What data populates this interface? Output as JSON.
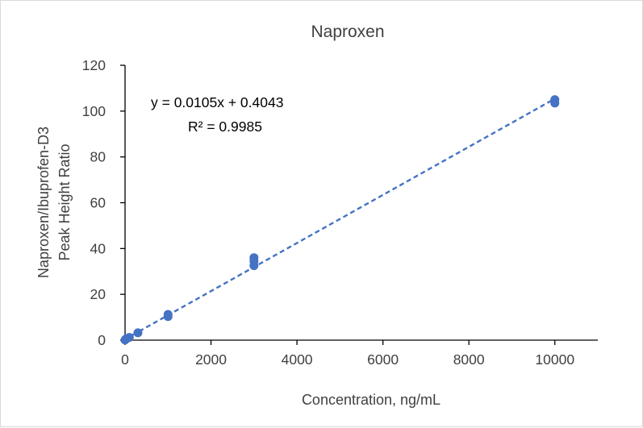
{
  "chart_data": {
    "type": "scatter",
    "title": "Naproxen",
    "xlabel": "Concentration, ng/mL",
    "ylabel_lines": [
      "Naproxen/Ibuprofen-D3",
      "Peak Height Ratio"
    ],
    "xlim": [
      0,
      11000
    ],
    "ylim": [
      0,
      120
    ],
    "xticks": [
      0,
      2000,
      4000,
      6000,
      8000,
      10000
    ],
    "yticks": [
      0,
      20,
      40,
      60,
      80,
      100,
      120
    ],
    "grid": false,
    "legend": "none",
    "series": [
      {
        "color": "#4472C4",
        "points": [
          {
            "x": 0,
            "y": 0.1
          },
          {
            "x": 10,
            "y": 0.3
          },
          {
            "x": 30,
            "y": 0.6
          },
          {
            "x": 100,
            "y": 1.2
          },
          {
            "x": 300,
            "y": 3.2
          },
          {
            "x": 1000,
            "y": 10.3
          },
          {
            "x": 1000,
            "y": 11.2
          },
          {
            "x": 3000,
            "y": 32.5
          },
          {
            "x": 3000,
            "y": 34.5
          },
          {
            "x": 3000,
            "y": 36.0
          },
          {
            "x": 10000,
            "y": 103.5
          },
          {
            "x": 10000,
            "y": 105.0
          }
        ]
      }
    ],
    "trendline": {
      "slope": 0.0105,
      "intercept": 0.4043,
      "x_range": [
        0,
        10000
      ],
      "style": "dashed",
      "color": "#4472C4",
      "equation_label": "y = 0.0105x + 0.4043",
      "r2_label": "R² = 0.9985"
    }
  }
}
